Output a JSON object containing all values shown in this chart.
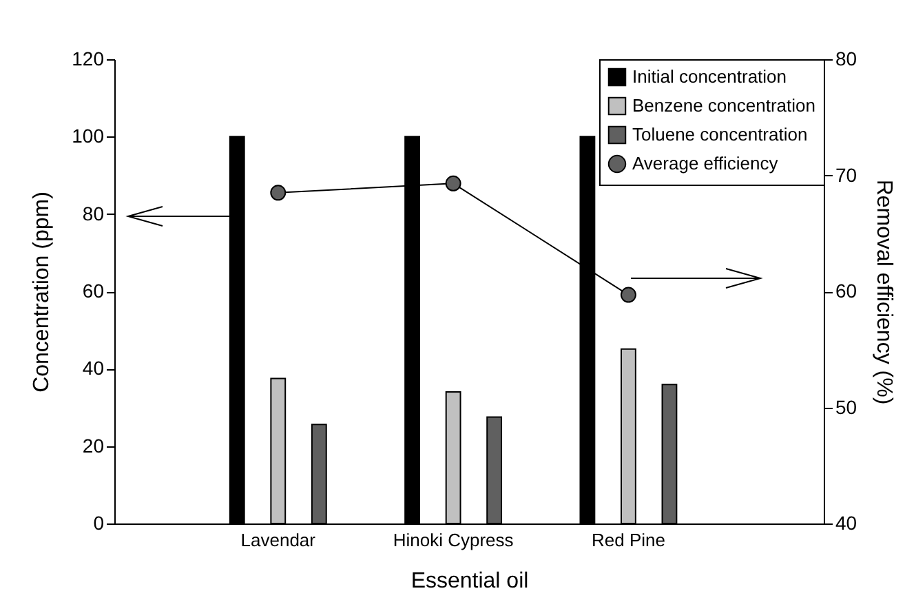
{
  "chart_data": {
    "type": "bar",
    "xlabel": "Essential oil",
    "ylabel": "Concentration (ppm)",
    "y2label": "Removal efficiency (%)",
    "categories": [
      "Lavendar",
      "Hinoki Cypress",
      "Red Pine"
    ],
    "series": [
      {
        "name": "Initial concentration",
        "color": "#000000",
        "values": [
          100,
          100,
          100
        ]
      },
      {
        "name": "Benzene concentration",
        "color": "#c0c0c0",
        "values": [
          37.5,
          34.0,
          45.1
        ]
      },
      {
        "name": "Toluene concentration",
        "color": "#606060",
        "values": [
          25.6,
          27.5,
          35.9
        ]
      },
      {
        "name": "Average efficiency",
        "type": "line",
        "axis": "y2",
        "marker": "circle",
        "color": "#606060",
        "values": [
          68.5,
          69.3,
          59.7
        ]
      }
    ],
    "ylim": [
      0,
      120
    ],
    "yticks": [
      0,
      20,
      40,
      60,
      80,
      100,
      120
    ],
    "y2lim": [
      40,
      80
    ],
    "y2ticks": [
      40,
      50,
      60,
      70,
      80
    ],
    "legend": "top right"
  }
}
